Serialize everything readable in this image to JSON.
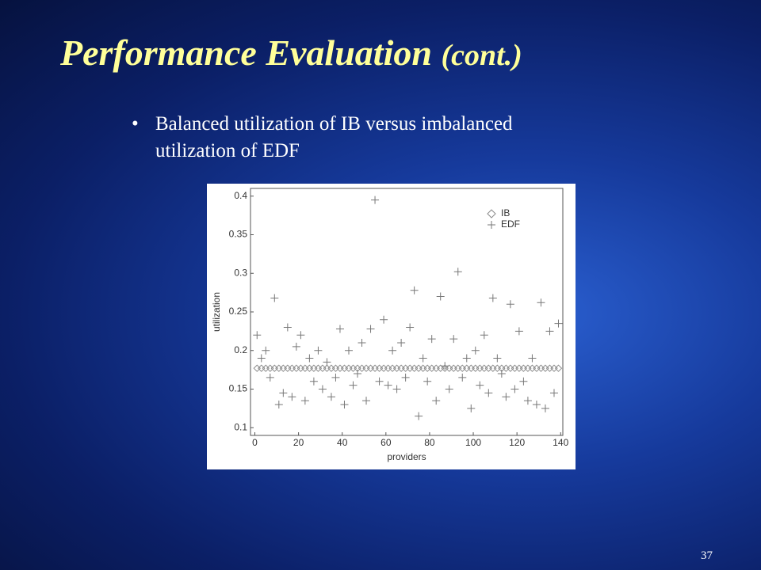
{
  "slide": {
    "title": "Performance Evaluation",
    "title_suffix": "(cont.)",
    "bullet_line1": "Balanced utilization of IB versus imbalanced",
    "bullet_line2": "utilization of EDF",
    "page_number": "37"
  },
  "chart_data": {
    "type": "scatter",
    "xlabel": "providers",
    "ylabel": "utilization",
    "xlim": [
      -2,
      141
    ],
    "ylim": [
      0.09,
      0.41
    ],
    "xticks": [
      0,
      20,
      40,
      60,
      80,
      100,
      120,
      140
    ],
    "yticks": [
      0.1,
      0.15,
      0.2,
      0.25,
      0.3,
      0.35,
      0.4
    ],
    "legend": "upper right",
    "series": [
      {
        "name": "IB",
        "marker": "diamond",
        "color": "#8a8a8a",
        "x": [
          1,
          3,
          5,
          7,
          9,
          11,
          13,
          15,
          17,
          19,
          21,
          23,
          25,
          27,
          29,
          31,
          33,
          35,
          37,
          39,
          41,
          43,
          45,
          47,
          49,
          51,
          53,
          55,
          57,
          59,
          61,
          63,
          65,
          67,
          69,
          71,
          73,
          75,
          77,
          79,
          81,
          83,
          85,
          87,
          89,
          91,
          93,
          95,
          97,
          99,
          101,
          103,
          105,
          107,
          109,
          111,
          113,
          115,
          117,
          119,
          121,
          123,
          125,
          127,
          129,
          131,
          133,
          135,
          137,
          139
        ],
        "values": [
          0.177,
          0.177,
          0.177,
          0.177,
          0.177,
          0.177,
          0.177,
          0.177,
          0.177,
          0.177,
          0.177,
          0.177,
          0.177,
          0.177,
          0.177,
          0.177,
          0.177,
          0.177,
          0.177,
          0.177,
          0.177,
          0.177,
          0.177,
          0.177,
          0.177,
          0.177,
          0.177,
          0.177,
          0.177,
          0.177,
          0.177,
          0.177,
          0.177,
          0.177,
          0.177,
          0.177,
          0.177,
          0.177,
          0.177,
          0.177,
          0.177,
          0.177,
          0.177,
          0.177,
          0.177,
          0.177,
          0.177,
          0.177,
          0.177,
          0.177,
          0.177,
          0.177,
          0.177,
          0.177,
          0.177,
          0.177,
          0.177,
          0.177,
          0.177,
          0.177,
          0.177,
          0.177,
          0.177,
          0.177,
          0.177,
          0.177,
          0.177,
          0.177,
          0.177,
          0.177
        ]
      },
      {
        "name": "EDF",
        "marker": "plus",
        "color": "#777777",
        "x": [
          1,
          3,
          5,
          7,
          9,
          11,
          13,
          15,
          17,
          19,
          21,
          23,
          25,
          27,
          29,
          31,
          33,
          35,
          37,
          39,
          41,
          43,
          45,
          47,
          49,
          51,
          53,
          55,
          57,
          59,
          61,
          63,
          65,
          67,
          69,
          71,
          73,
          75,
          77,
          79,
          81,
          83,
          85,
          87,
          89,
          91,
          93,
          95,
          97,
          99,
          101,
          103,
          105,
          107,
          109,
          111,
          113,
          115,
          117,
          119,
          121,
          123,
          125,
          127,
          129,
          131,
          133,
          135,
          137,
          139
        ],
        "values": [
          0.22,
          0.19,
          0.2,
          0.165,
          0.268,
          0.13,
          0.145,
          0.23,
          0.14,
          0.205,
          0.22,
          0.135,
          0.19,
          0.16,
          0.2,
          0.15,
          0.185,
          0.14,
          0.165,
          0.228,
          0.13,
          0.2,
          0.155,
          0.17,
          0.21,
          0.135,
          0.228,
          0.395,
          0.16,
          0.24,
          0.155,
          0.2,
          0.15,
          0.21,
          0.165,
          0.23,
          0.278,
          0.115,
          0.19,
          0.16,
          0.215,
          0.135,
          0.27,
          0.18,
          0.15,
          0.215,
          0.302,
          0.165,
          0.19,
          0.125,
          0.2,
          0.155,
          0.22,
          0.145,
          0.268,
          0.19,
          0.17,
          0.14,
          0.26,
          0.15,
          0.225,
          0.16,
          0.135,
          0.19,
          0.13,
          0.262,
          0.125,
          0.225,
          0.145,
          0.235
        ]
      }
    ]
  }
}
